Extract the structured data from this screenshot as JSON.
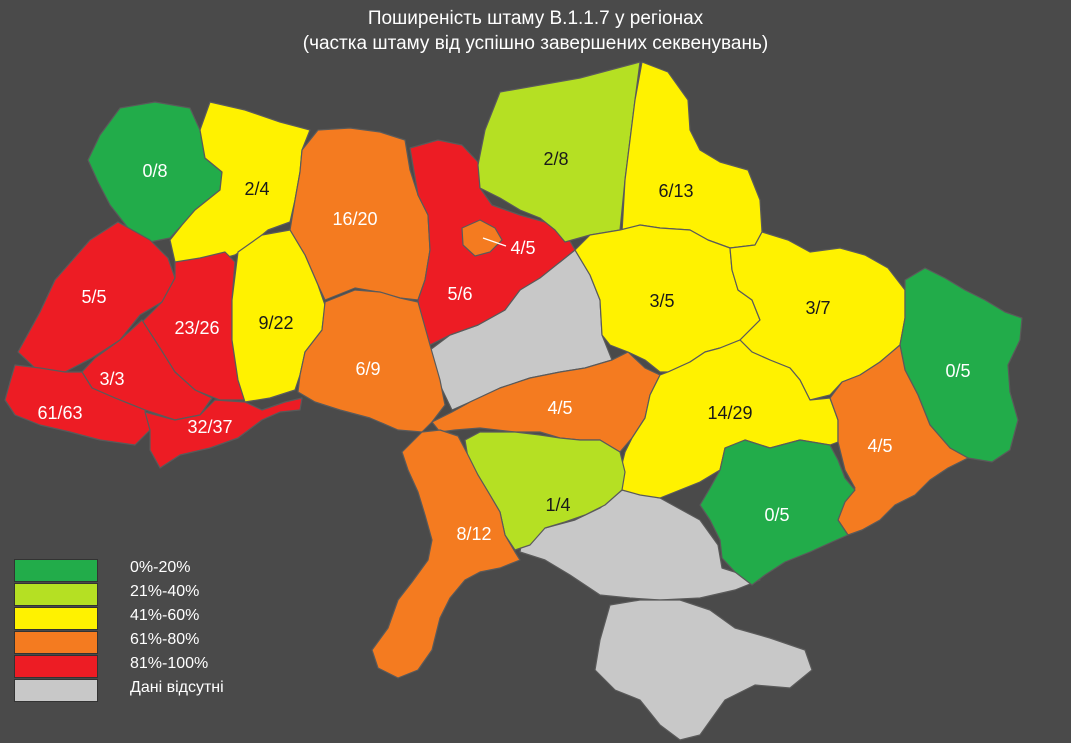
{
  "title": {
    "line1": "Поширеність штаму В.1.1.7 у регіонах",
    "line2": "(частка штаму від успішно завершених секвенувань)"
  },
  "colors": {
    "background": "#4a4a4a",
    "0-20": "#22ac4a",
    "21-40": "#b5e023",
    "41-60": "#fff200",
    "61-80": "#f47b20",
    "81-100": "#ed1c24",
    "no_data": "#c8c8c8"
  },
  "regions": [
    {
      "id": "volyn",
      "label": "0/8",
      "bin": "0-20"
    },
    {
      "id": "rivne",
      "label": "2/4",
      "bin": "41-60"
    },
    {
      "id": "zhytomyr",
      "label": "16/20",
      "bin": "61-80"
    },
    {
      "id": "kyiv-oblast",
      "label": "5/6",
      "bin": "81-100"
    },
    {
      "id": "kyiv-city",
      "label": "4/5",
      "bin": "61-80"
    },
    {
      "id": "chernihiv",
      "label": "2/8",
      "bin": "21-40"
    },
    {
      "id": "sumy",
      "label": "6/13",
      "bin": "41-60"
    },
    {
      "id": "lviv",
      "label": "5/5",
      "bin": "81-100"
    },
    {
      "id": "ternopil",
      "label": "23/26",
      "bin": "81-100"
    },
    {
      "id": "khmelnytskyi",
      "label": "9/22",
      "bin": "41-60"
    },
    {
      "id": "vinnytsia",
      "label": "6/9",
      "bin": "61-80"
    },
    {
      "id": "poltava",
      "label": "3/5",
      "bin": "41-60"
    },
    {
      "id": "kharkiv",
      "label": "3/7",
      "bin": "41-60"
    },
    {
      "id": "luhansk",
      "label": "0/5",
      "bin": "0-20"
    },
    {
      "id": "ivano-frankivsk",
      "label": "3/3",
      "bin": "81-100"
    },
    {
      "id": "zakarpattia",
      "label": "61/63",
      "bin": "81-100"
    },
    {
      "id": "chernivtsi",
      "label": "32/37",
      "bin": "81-100"
    },
    {
      "id": "kirovohrad",
      "label": "4/5",
      "bin": "61-80"
    },
    {
      "id": "dnipro",
      "label": "14/29",
      "bin": "41-60"
    },
    {
      "id": "donetsk",
      "label": "4/5",
      "bin": "61-80"
    },
    {
      "id": "mykolaiv",
      "label": "1/4",
      "bin": "21-40"
    },
    {
      "id": "odesa",
      "label": "8/12",
      "bin": "61-80"
    },
    {
      "id": "zaporizhzhia",
      "label": "0/5",
      "bin": "0-20"
    },
    {
      "id": "cherkasy",
      "label": "",
      "bin": "no_data"
    },
    {
      "id": "kherson",
      "label": "",
      "bin": "no_data"
    },
    {
      "id": "crimea",
      "label": "",
      "bin": "no_data"
    }
  ],
  "legend": [
    {
      "label": "0%-20%",
      "bin": "0-20"
    },
    {
      "label": "21%-40%",
      "bin": "21-40"
    },
    {
      "label": "41%-60%",
      "bin": "41-60"
    },
    {
      "label": "61%-80%",
      "bin": "61-80"
    },
    {
      "label": "81%-100%",
      "bin": "81-100"
    },
    {
      "label": "Дані відсутні",
      "bin": "no_data"
    }
  ]
}
